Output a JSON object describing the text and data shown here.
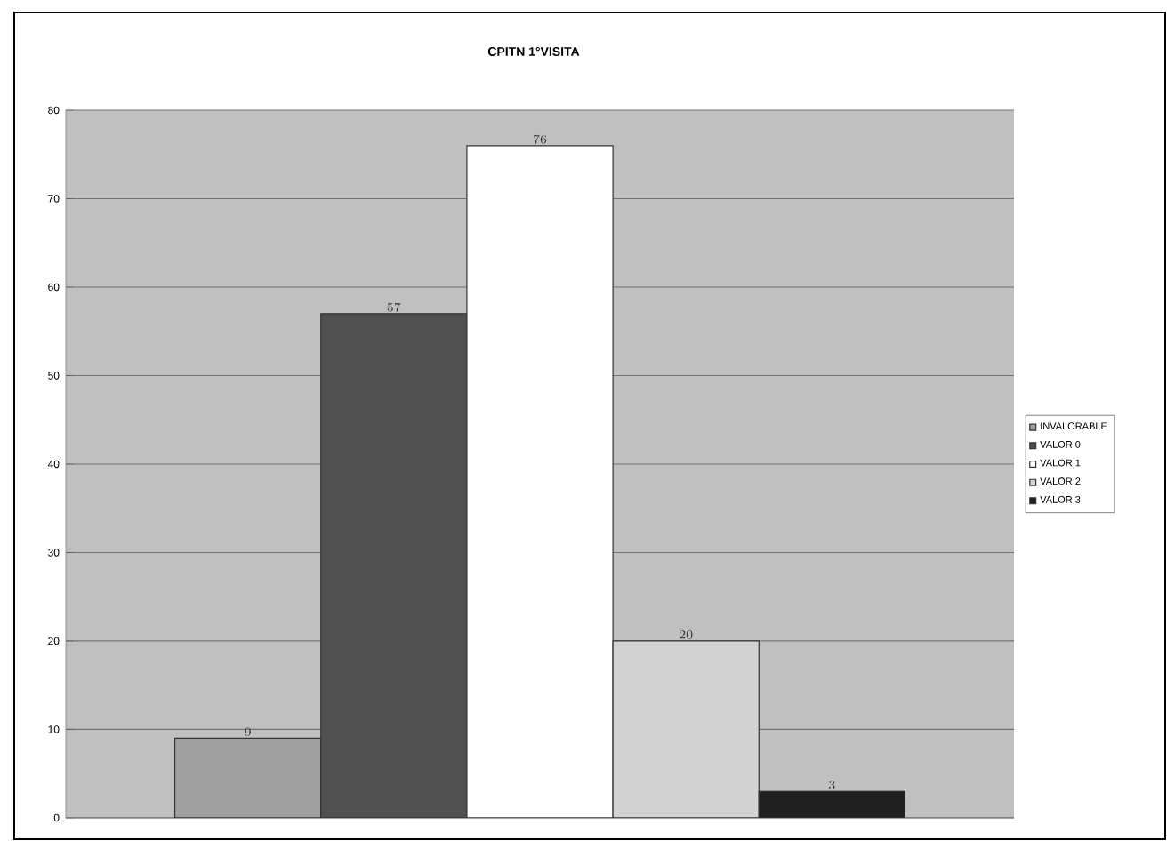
{
  "chart_data": {
    "type": "bar",
    "title": "CPITN 1°VISITA",
    "categories": [
      null
    ],
    "series": [
      {
        "name": "INVALORABLE",
        "color": "#a0a0a0",
        "values": [
          9
        ]
      },
      {
        "name": "VALOR 0",
        "color": "#505050",
        "values": [
          57
        ]
      },
      {
        "name": "VALOR 1",
        "color": "#ffffff",
        "values": [
          76
        ]
      },
      {
        "name": "VALOR 2",
        "color": "#d3d3d3",
        "values": [
          20
        ]
      },
      {
        "name": "VALOR 3",
        "color": "#202020",
        "values": [
          3
        ]
      }
    ],
    "ylim": [
      0,
      80
    ],
    "yticks": [
      0,
      10,
      20,
      30,
      40,
      50,
      60,
      70,
      80
    ],
    "grid": "y",
    "legend": "right",
    "data_labels": true
  }
}
